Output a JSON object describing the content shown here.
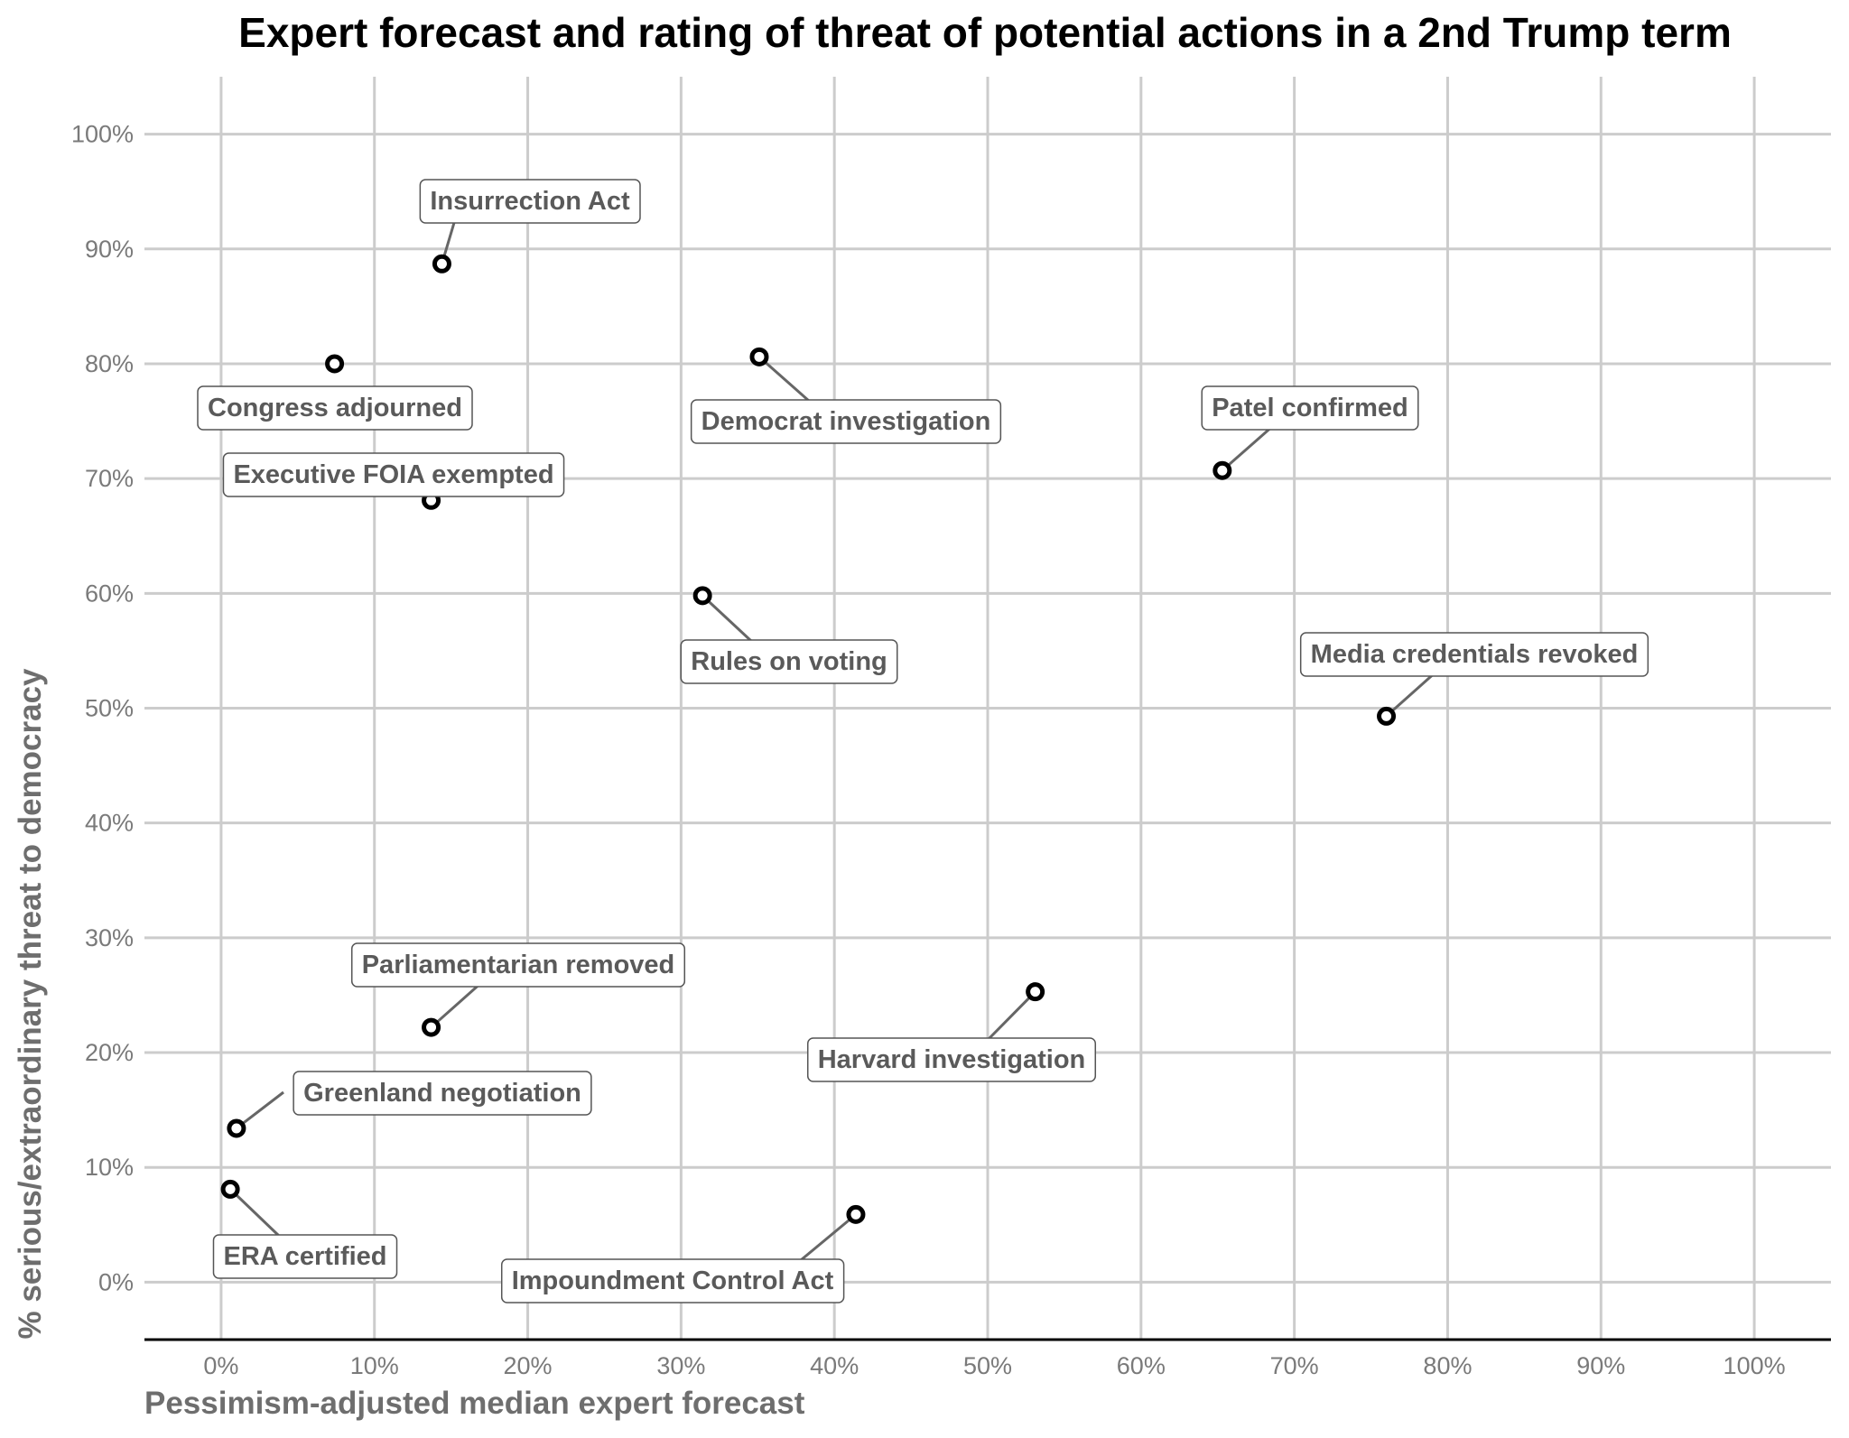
{
  "chart_data": {
    "type": "scatter",
    "title": "Expert forecast and rating of threat of potential actions in a 2nd Trump term",
    "xlabel": "Pessimism-adjusted median expert forecast",
    "ylabel": "% serious/extraordinary threat to democracy",
    "xlim": [
      -0.05,
      1.05
    ],
    "ylim": [
      -0.05,
      1.05
    ],
    "x_ticks": [
      0,
      0.1,
      0.2,
      0.3,
      0.4,
      0.5,
      0.6,
      0.7,
      0.8,
      0.9,
      1.0
    ],
    "x_tick_labels": [
      "0%",
      "10%",
      "20%",
      "30%",
      "40%",
      "50%",
      "60%",
      "70%",
      "80%",
      "90%",
      "100%"
    ],
    "y_ticks": [
      0,
      0.1,
      0.2,
      0.3,
      0.4,
      0.5,
      0.6,
      0.7,
      0.8,
      0.9,
      1.0
    ],
    "y_tick_labels": [
      "0%",
      "10%",
      "20%",
      "30%",
      "40%",
      "50%",
      "60%",
      "70%",
      "80%",
      "90%",
      "100%"
    ],
    "grid": true,
    "points": [
      {
        "label": "Insurrection Act",
        "x": 0.144,
        "y": 0.887
      },
      {
        "label": "Congress adjourned",
        "x": 0.074,
        "y": 0.8
      },
      {
        "label": "Democrat investigation",
        "x": 0.351,
        "y": 0.806
      },
      {
        "label": "Executive FOIA exempted",
        "x": 0.137,
        "y": 0.681
      },
      {
        "label": "Patel confirmed",
        "x": 0.653,
        "y": 0.707
      },
      {
        "label": "Rules on voting",
        "x": 0.314,
        "y": 0.598
      },
      {
        "label": "Media credentials revoked",
        "x": 0.76,
        "y": 0.493
      },
      {
        "label": "Parliamentarian removed",
        "x": 0.137,
        "y": 0.222
      },
      {
        "label": "Harvard investigation",
        "x": 0.531,
        "y": 0.253
      },
      {
        "label": "Greenland negotiation",
        "x": 0.01,
        "y": 0.134
      },
      {
        "label": "ERA certified",
        "x": 0.006,
        "y": 0.081
      },
      {
        "label": "Impoundment Control Act",
        "x": 0.414,
        "y": 0.059
      }
    ]
  }
}
